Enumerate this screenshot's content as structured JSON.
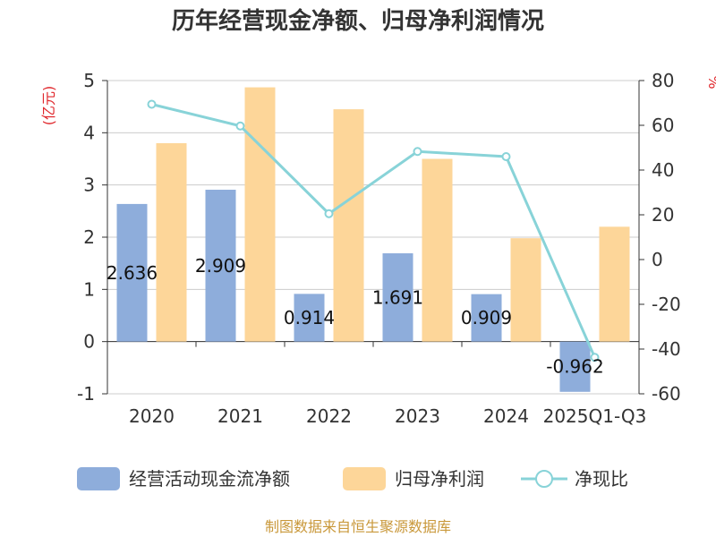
{
  "chart_data": {
    "type": "bar",
    "title": "历年经营现金净额、归母净利润情况",
    "categories": [
      "2020",
      "2021",
      "2022",
      "2023",
      "2024",
      "2025Q1-Q3"
    ],
    "left_axis": {
      "unit": "(亿元)",
      "min": -1,
      "max": 5,
      "ticks": [
        -1,
        0,
        1,
        2,
        3,
        4,
        5
      ]
    },
    "right_axis": {
      "unit": "%",
      "min": -60,
      "max": 80,
      "ticks": [
        -60,
        -40,
        -20,
        0,
        20,
        40,
        60,
        80
      ]
    },
    "series": [
      {
        "name": "经营活动现金流净额",
        "type": "bar",
        "axis": "left",
        "color": "#8eaddb",
        "values": [
          2.636,
          2.909,
          0.914,
          1.691,
          0.909,
          -0.962
        ],
        "labels": [
          "2.636",
          "2.909",
          "0.914",
          "1.691",
          "0.909",
          "-0.962"
        ]
      },
      {
        "name": "归母净利润",
        "type": "bar",
        "axis": "left",
        "color": "#fdd699",
        "values": [
          3.8,
          4.87,
          4.45,
          3.5,
          1.98,
          2.2
        ]
      },
      {
        "name": "净现比",
        "type": "line",
        "axis": "right",
        "color": "#88d3d8",
        "values": [
          69.4,
          59.7,
          20.5,
          48.3,
          46.0,
          -43.7
        ]
      }
    ],
    "legend_position": "bottom",
    "grid": true
  },
  "source_note": "制图数据来自恒生聚源数据库"
}
